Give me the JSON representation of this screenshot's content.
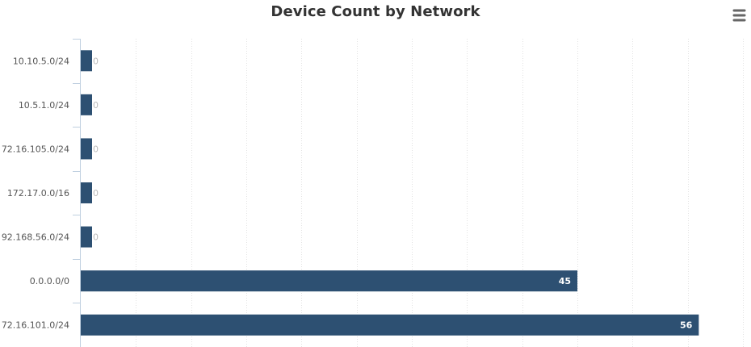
{
  "chart_data": {
    "type": "bar",
    "orientation": "horizontal",
    "title": "Device Count by Network",
    "categories": [
      "10.10.5.0/24",
      "10.5.1.0/24",
      "72.16.105.0/24",
      "172.17.0.0/16",
      "92.168.56.0/24",
      "0.0.0.0/0",
      "72.16.101.0/24"
    ],
    "values": [
      0,
      0,
      0,
      0,
      0,
      45,
      56
    ],
    "data_labels": [
      "0",
      "0",
      "0",
      "0",
      "0",
      "45",
      "56"
    ],
    "xlim": [
      0,
      60
    ],
    "grid": true,
    "bar_color": "#2d5072"
  },
  "menu": {
    "icon": "hamburger-menu-icon"
  }
}
